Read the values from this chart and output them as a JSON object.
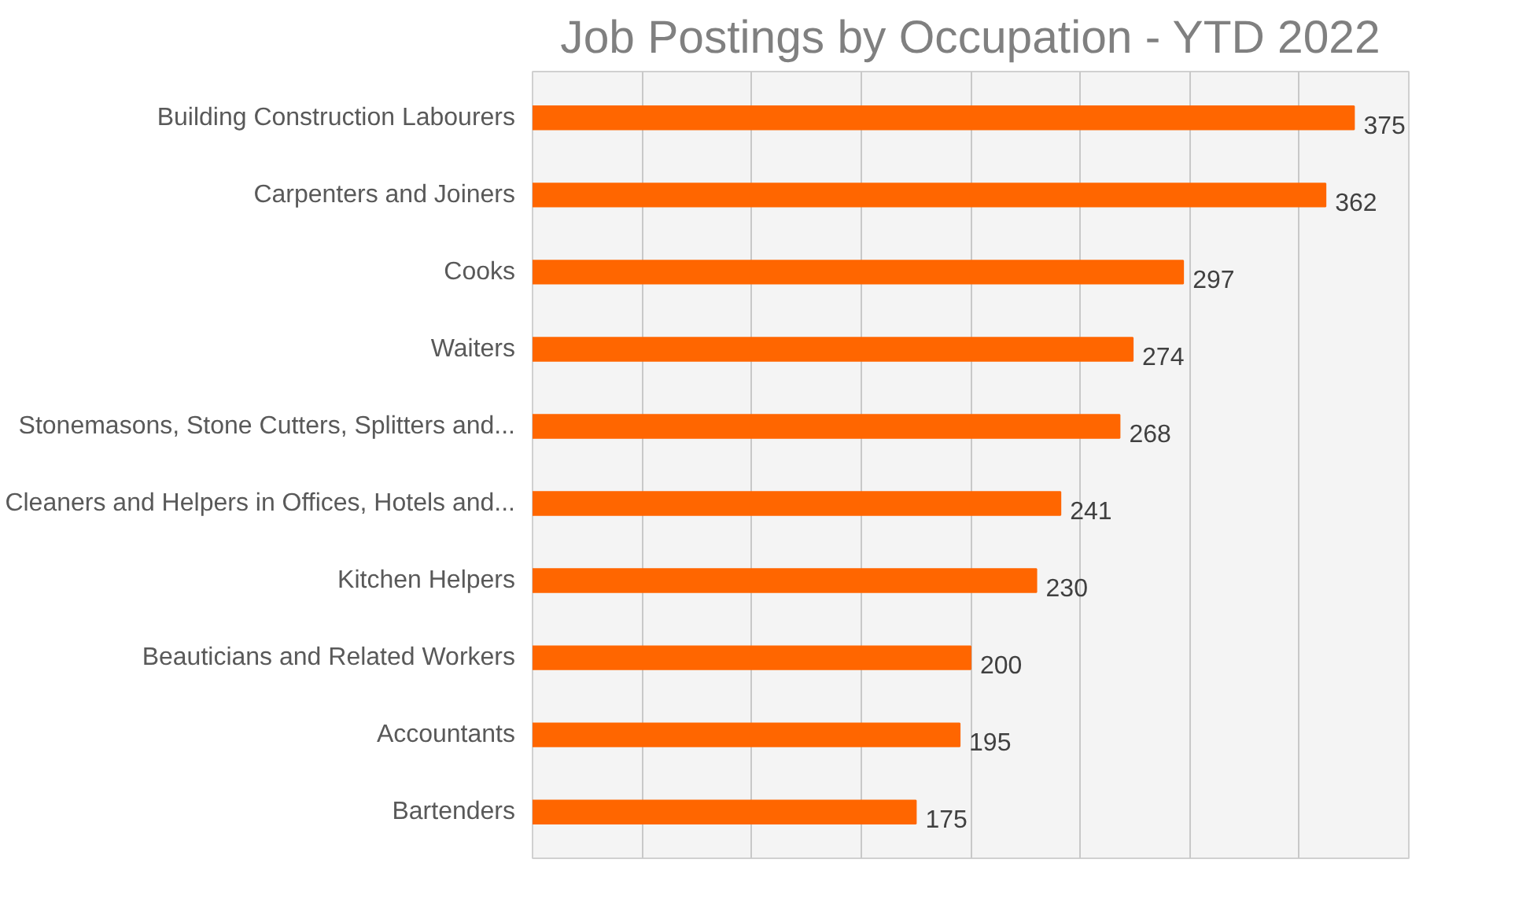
{
  "chart_data": {
    "type": "bar",
    "orientation": "horizontal",
    "title": "Job Postings by Occupation - YTD 2022",
    "categories": [
      "Building Construction Labourers",
      "Carpenters and Joiners",
      "Cooks",
      "Waiters",
      "Stonemasons, Stone Cutters, Splitters and...",
      "Cleaners and Helpers in Offices, Hotels and...",
      "Kitchen Helpers",
      "Beauticians and Related Workers",
      "Accountants",
      "Bartenders"
    ],
    "values": [
      375,
      362,
      297,
      274,
      268,
      241,
      230,
      200,
      195,
      175
    ],
    "color": "#ff6600",
    "data_labels": true,
    "grid": "x",
    "tick_labels": "y",
    "xlim": [
      0,
      400
    ],
    "xticks": [
      {
        "value": 0,
        "label": null
      },
      {
        "value": 50,
        "label": null
      },
      {
        "value": 100,
        "label": null
      },
      {
        "value": 150,
        "label": null
      },
      {
        "value": 200,
        "label": null
      },
      {
        "value": 250,
        "label": null
      },
      {
        "value": 300,
        "label": null
      },
      {
        "value": 350,
        "label": null
      },
      {
        "value": 400,
        "label": null
      }
    ]
  }
}
